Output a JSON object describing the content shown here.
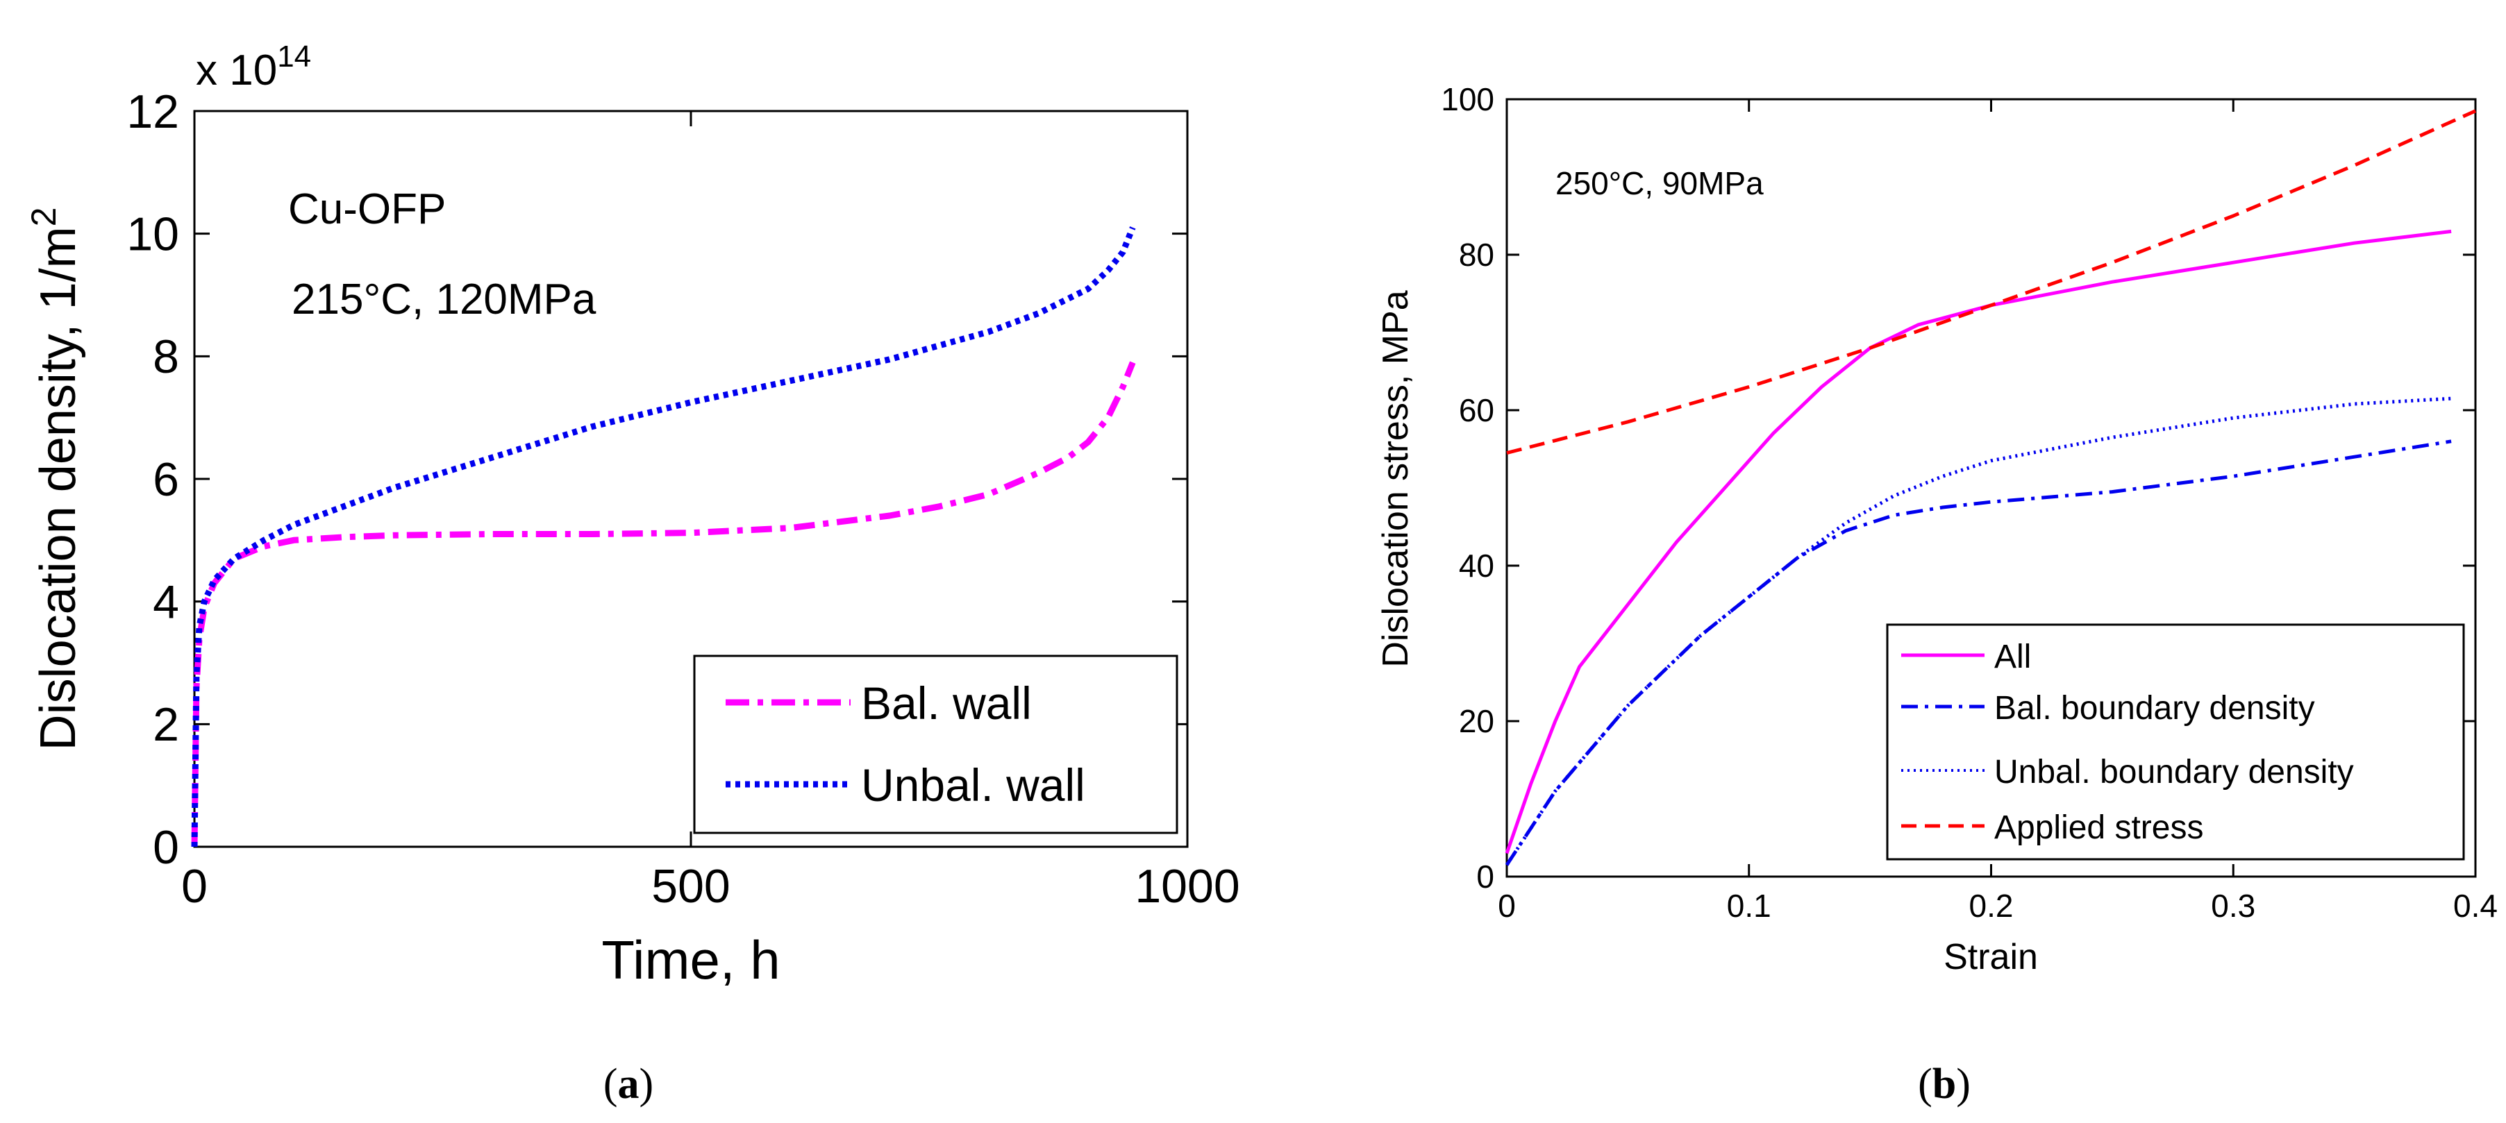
{
  "chart_data": [
    {
      "type": "line",
      "title": "",
      "xlabel": "Time, h",
      "ylabel": "Dislocation density, 1/m",
      "ylabel_exponent": "2",
      "y_multiplier": {
        "prefix": "x 10",
        "exponent": "14"
      },
      "xlim": [
        0,
        1000
      ],
      "ylim": [
        0,
        12
      ],
      "xticks": [
        0,
        500,
        1000
      ],
      "xtick_labels": [
        "0",
        "500",
        "1000"
      ],
      "yticks": [
        0,
        2,
        4,
        6,
        8,
        10,
        12
      ],
      "ytick_labels": [
        "0",
        "2",
        "4",
        "6",
        "8",
        "10",
        "12"
      ],
      "grid": false,
      "annotations": [
        "Cu-OFP",
        "215°C, 120MPa"
      ],
      "legend_position": "bottom-right",
      "caption": {
        "open": "(",
        "letter": "a",
        "close": ")"
      },
      "series": [
        {
          "name": "Bal. wall",
          "color": "#ff00ff",
          "style": "dash-dot",
          "x": [
            0,
            2,
            5,
            10,
            20,
            40,
            70,
            100,
            150,
            200,
            300,
            400,
            500,
            600,
            650,
            700,
            750,
            800,
            850,
            880,
            900,
            920,
            935,
            945
          ],
          "y": [
            0,
            2.6,
            3.4,
            3.9,
            4.3,
            4.7,
            4.9,
            5.0,
            5.05,
            5.08,
            5.1,
            5.1,
            5.12,
            5.2,
            5.3,
            5.4,
            5.55,
            5.75,
            6.1,
            6.35,
            6.6,
            7.0,
            7.5,
            7.9
          ]
        },
        {
          "name": "Unbal. wall",
          "color": "#0000ee",
          "style": "dotted",
          "x": [
            0,
            2,
            5,
            10,
            20,
            40,
            70,
            100,
            150,
            200,
            300,
            400,
            500,
            600,
            700,
            800,
            850,
            900,
            920,
            935,
            945
          ],
          "y": [
            0,
            2.8,
            3.6,
            4.0,
            4.35,
            4.7,
            5.0,
            5.25,
            5.55,
            5.85,
            6.35,
            6.85,
            7.25,
            7.6,
            7.95,
            8.4,
            8.7,
            9.1,
            9.4,
            9.7,
            10.1
          ]
        }
      ]
    },
    {
      "type": "line",
      "title": "",
      "xlabel": "Strain",
      "ylabel": "Dislocation stress, MPa",
      "xlim": [
        0,
        0.4
      ],
      "ylim": [
        0,
        100
      ],
      "xticks": [
        0,
        0.1,
        0.2,
        0.3,
        0.4
      ],
      "xtick_labels": [
        "0",
        "0.1",
        "0.2",
        "0.3",
        "0.4"
      ],
      "yticks": [
        0,
        20,
        40,
        60,
        80,
        100
      ],
      "ytick_labels": [
        "0",
        "20",
        "40",
        "60",
        "80",
        "100"
      ],
      "grid": false,
      "annotations": [
        "250°C, 90MPa"
      ],
      "legend_position": "bottom-right",
      "caption": {
        "open": "(",
        "letter": "b",
        "close": ")"
      },
      "series": [
        {
          "name": "All",
          "color": "#ff00ff",
          "style": "solid",
          "x": [
            0,
            0.01,
            0.02,
            0.03,
            0.05,
            0.07,
            0.09,
            0.11,
            0.13,
            0.15,
            0.17,
            0.2,
            0.25,
            0.3,
            0.35,
            0.39
          ],
          "y": [
            3,
            12,
            20,
            27,
            35,
            43,
            50,
            57,
            63,
            68,
            71,
            73.5,
            76.5,
            79,
            81.5,
            83
          ]
        },
        {
          "name": "Bal. boundary density",
          "color": "#0000ee",
          "style": "dash-dot",
          "x": [
            0,
            0.02,
            0.05,
            0.08,
            0.1,
            0.12,
            0.14,
            0.16,
            0.18,
            0.2,
            0.25,
            0.3,
            0.35,
            0.39
          ],
          "y": [
            1.5,
            11,
            22,
            31,
            36,
            41,
            44.5,
            46.5,
            47.5,
            48.2,
            49.5,
            51.5,
            54,
            56
          ]
        },
        {
          "name": "Unbal. boundary density",
          "color": "#0000ee",
          "style": "dotted",
          "x": [
            0,
            0.02,
            0.05,
            0.08,
            0.1,
            0.12,
            0.14,
            0.16,
            0.18,
            0.2,
            0.25,
            0.3,
            0.35,
            0.39
          ],
          "y": [
            1.5,
            11,
            22,
            31,
            36,
            41,
            45.5,
            49,
            51.5,
            53.5,
            56.5,
            59,
            60.8,
            61.5
          ]
        },
        {
          "name": "Applied stress",
          "color": "#ff0000",
          "style": "dashed",
          "x": [
            0,
            0.05,
            0.1,
            0.15,
            0.2,
            0.25,
            0.3,
            0.35,
            0.4
          ],
          "y": [
            54.5,
            58.5,
            63,
            68,
            73.5,
            79,
            85,
            91.5,
            98.5
          ]
        }
      ]
    }
  ]
}
